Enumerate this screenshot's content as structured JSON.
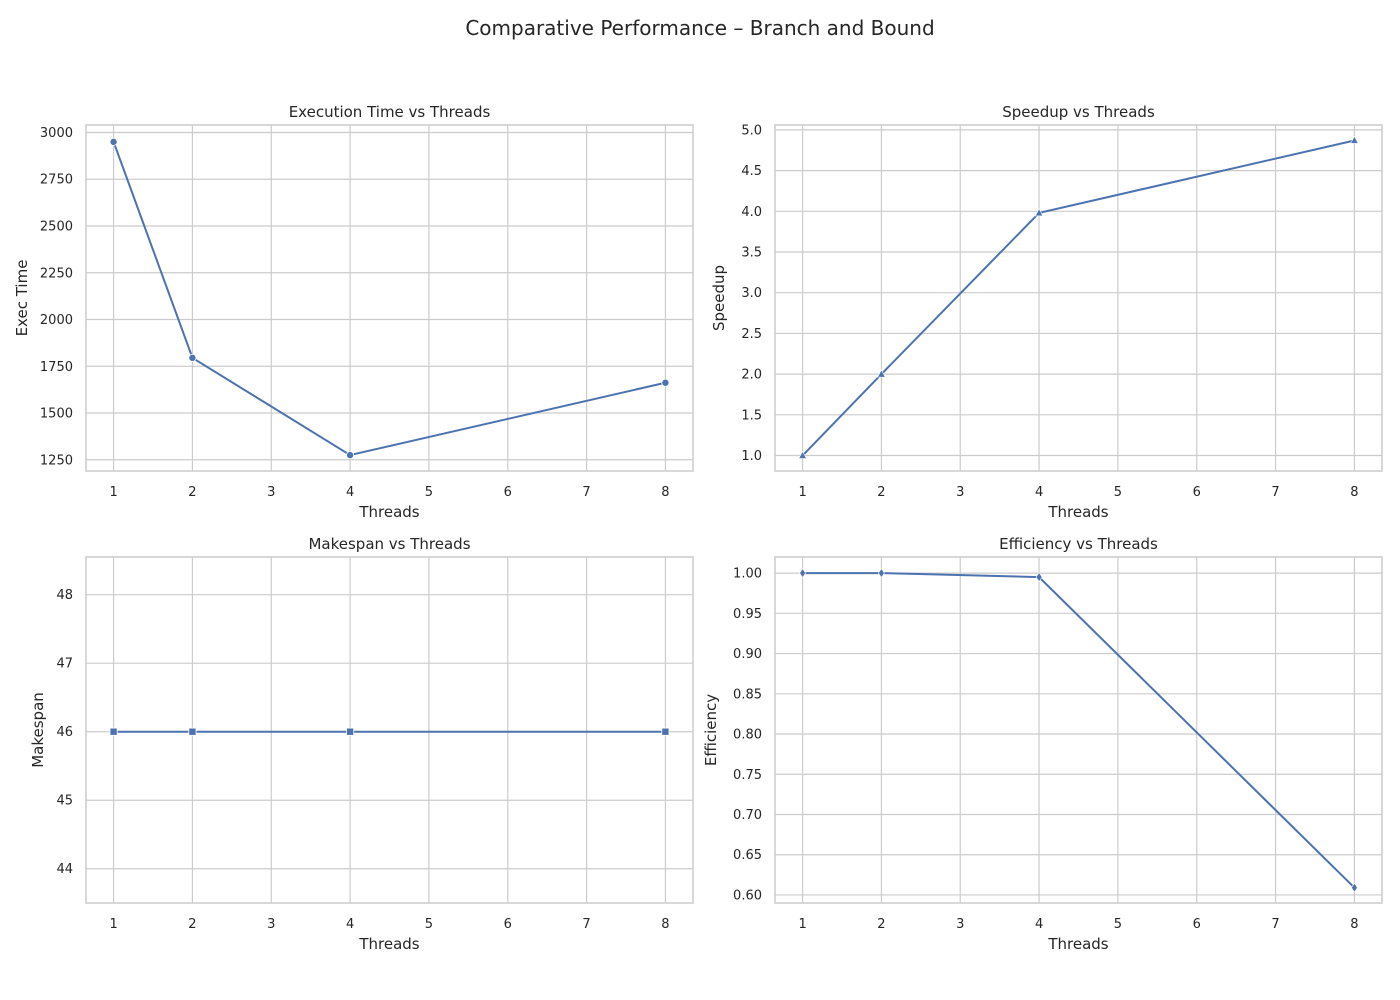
{
  "figure": {
    "title": "Comparative Performance – Branch and Bound",
    "line_color": "#4c72b0",
    "grid_color": "#cccccc"
  },
  "chart_data": [
    {
      "type": "line",
      "title": "Execution Time vs Threads",
      "xlabel": "Threads",
      "ylabel": "Exec Time",
      "x": [
        1,
        2,
        4,
        8
      ],
      "x_ticks": [
        1,
        2,
        3,
        4,
        5,
        6,
        7,
        8
      ],
      "y_ticks": [
        1250,
        1500,
        1750,
        2000,
        2250,
        2500,
        2750,
        3000
      ],
      "series": [
        {
          "values": [
            2950,
            1795,
            1275,
            1662
          ],
          "marker": "circle"
        }
      ],
      "xlim": [
        0.65,
        8.35
      ],
      "ylim": [
        1190,
        3040
      ],
      "grid": true
    },
    {
      "type": "line",
      "title": "Speedup vs Threads",
      "xlabel": "Threads",
      "ylabel": "Speedup",
      "x": [
        1,
        2,
        4,
        8
      ],
      "x_ticks": [
        1,
        2,
        3,
        4,
        5,
        6,
        7,
        8
      ],
      "y_ticks": [
        "1.0",
        "1.5",
        "2.0",
        "2.5",
        "3.0",
        "3.5",
        "4.0",
        "4.5",
        "5.0"
      ],
      "series": [
        {
          "values": [
            1.0,
            2.0,
            3.98,
            4.87
          ],
          "marker": "triangle"
        }
      ],
      "xlim": [
        0.65,
        8.35
      ],
      "ylim": [
        0.81,
        5.06
      ],
      "grid": true
    },
    {
      "type": "line",
      "title": "Makespan vs Threads",
      "xlabel": "Threads",
      "ylabel": "Makespan",
      "x": [
        1,
        2,
        4,
        8
      ],
      "x_ticks": [
        1,
        2,
        3,
        4,
        5,
        6,
        7,
        8
      ],
      "y_ticks": [
        44,
        45,
        46,
        47,
        48
      ],
      "series": [
        {
          "values": [
            46,
            46,
            46,
            46
          ],
          "marker": "square"
        }
      ],
      "xlim": [
        0.65,
        8.35
      ],
      "ylim": [
        43.5,
        48.55
      ],
      "grid": true
    },
    {
      "type": "line",
      "title": "Efficiency vs Threads",
      "xlabel": "Threads",
      "ylabel": "Efficiency",
      "x": [
        1,
        2,
        4,
        8
      ],
      "x_ticks": [
        1,
        2,
        3,
        4,
        5,
        6,
        7,
        8
      ],
      "y_ticks": [
        "0.60",
        "0.65",
        "0.70",
        "0.75",
        "0.80",
        "0.85",
        "0.90",
        "0.95",
        "1.00"
      ],
      "series": [
        {
          "values": [
            1.0,
            1.0,
            0.995,
            0.609
          ],
          "marker": "diamond"
        }
      ],
      "xlim": [
        0.65,
        8.35
      ],
      "ylim": [
        0.59,
        1.02
      ],
      "grid": true
    }
  ]
}
